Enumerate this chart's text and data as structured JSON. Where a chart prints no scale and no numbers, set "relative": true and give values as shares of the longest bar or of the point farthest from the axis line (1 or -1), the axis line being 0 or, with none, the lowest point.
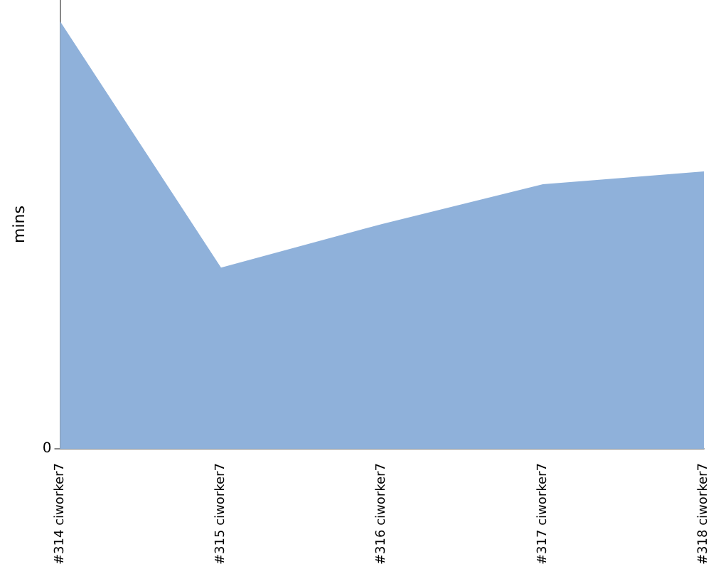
{
  "chart_data": {
    "type": "area",
    "ylabel": "mins",
    "relative": true,
    "annotations": [
      "0"
    ],
    "categories": [
      "#314 ciworker7",
      "#315 ciworker7",
      "#316 ciworker7",
      "#317 ciworker7",
      "#318 ciworker7"
    ],
    "series": [
      {
        "color": "#8fb1da",
        "values": [
          1,
          0.424,
          0.526,
          0.619,
          0.649
        ]
      }
    ],
    "grid": false
  }
}
